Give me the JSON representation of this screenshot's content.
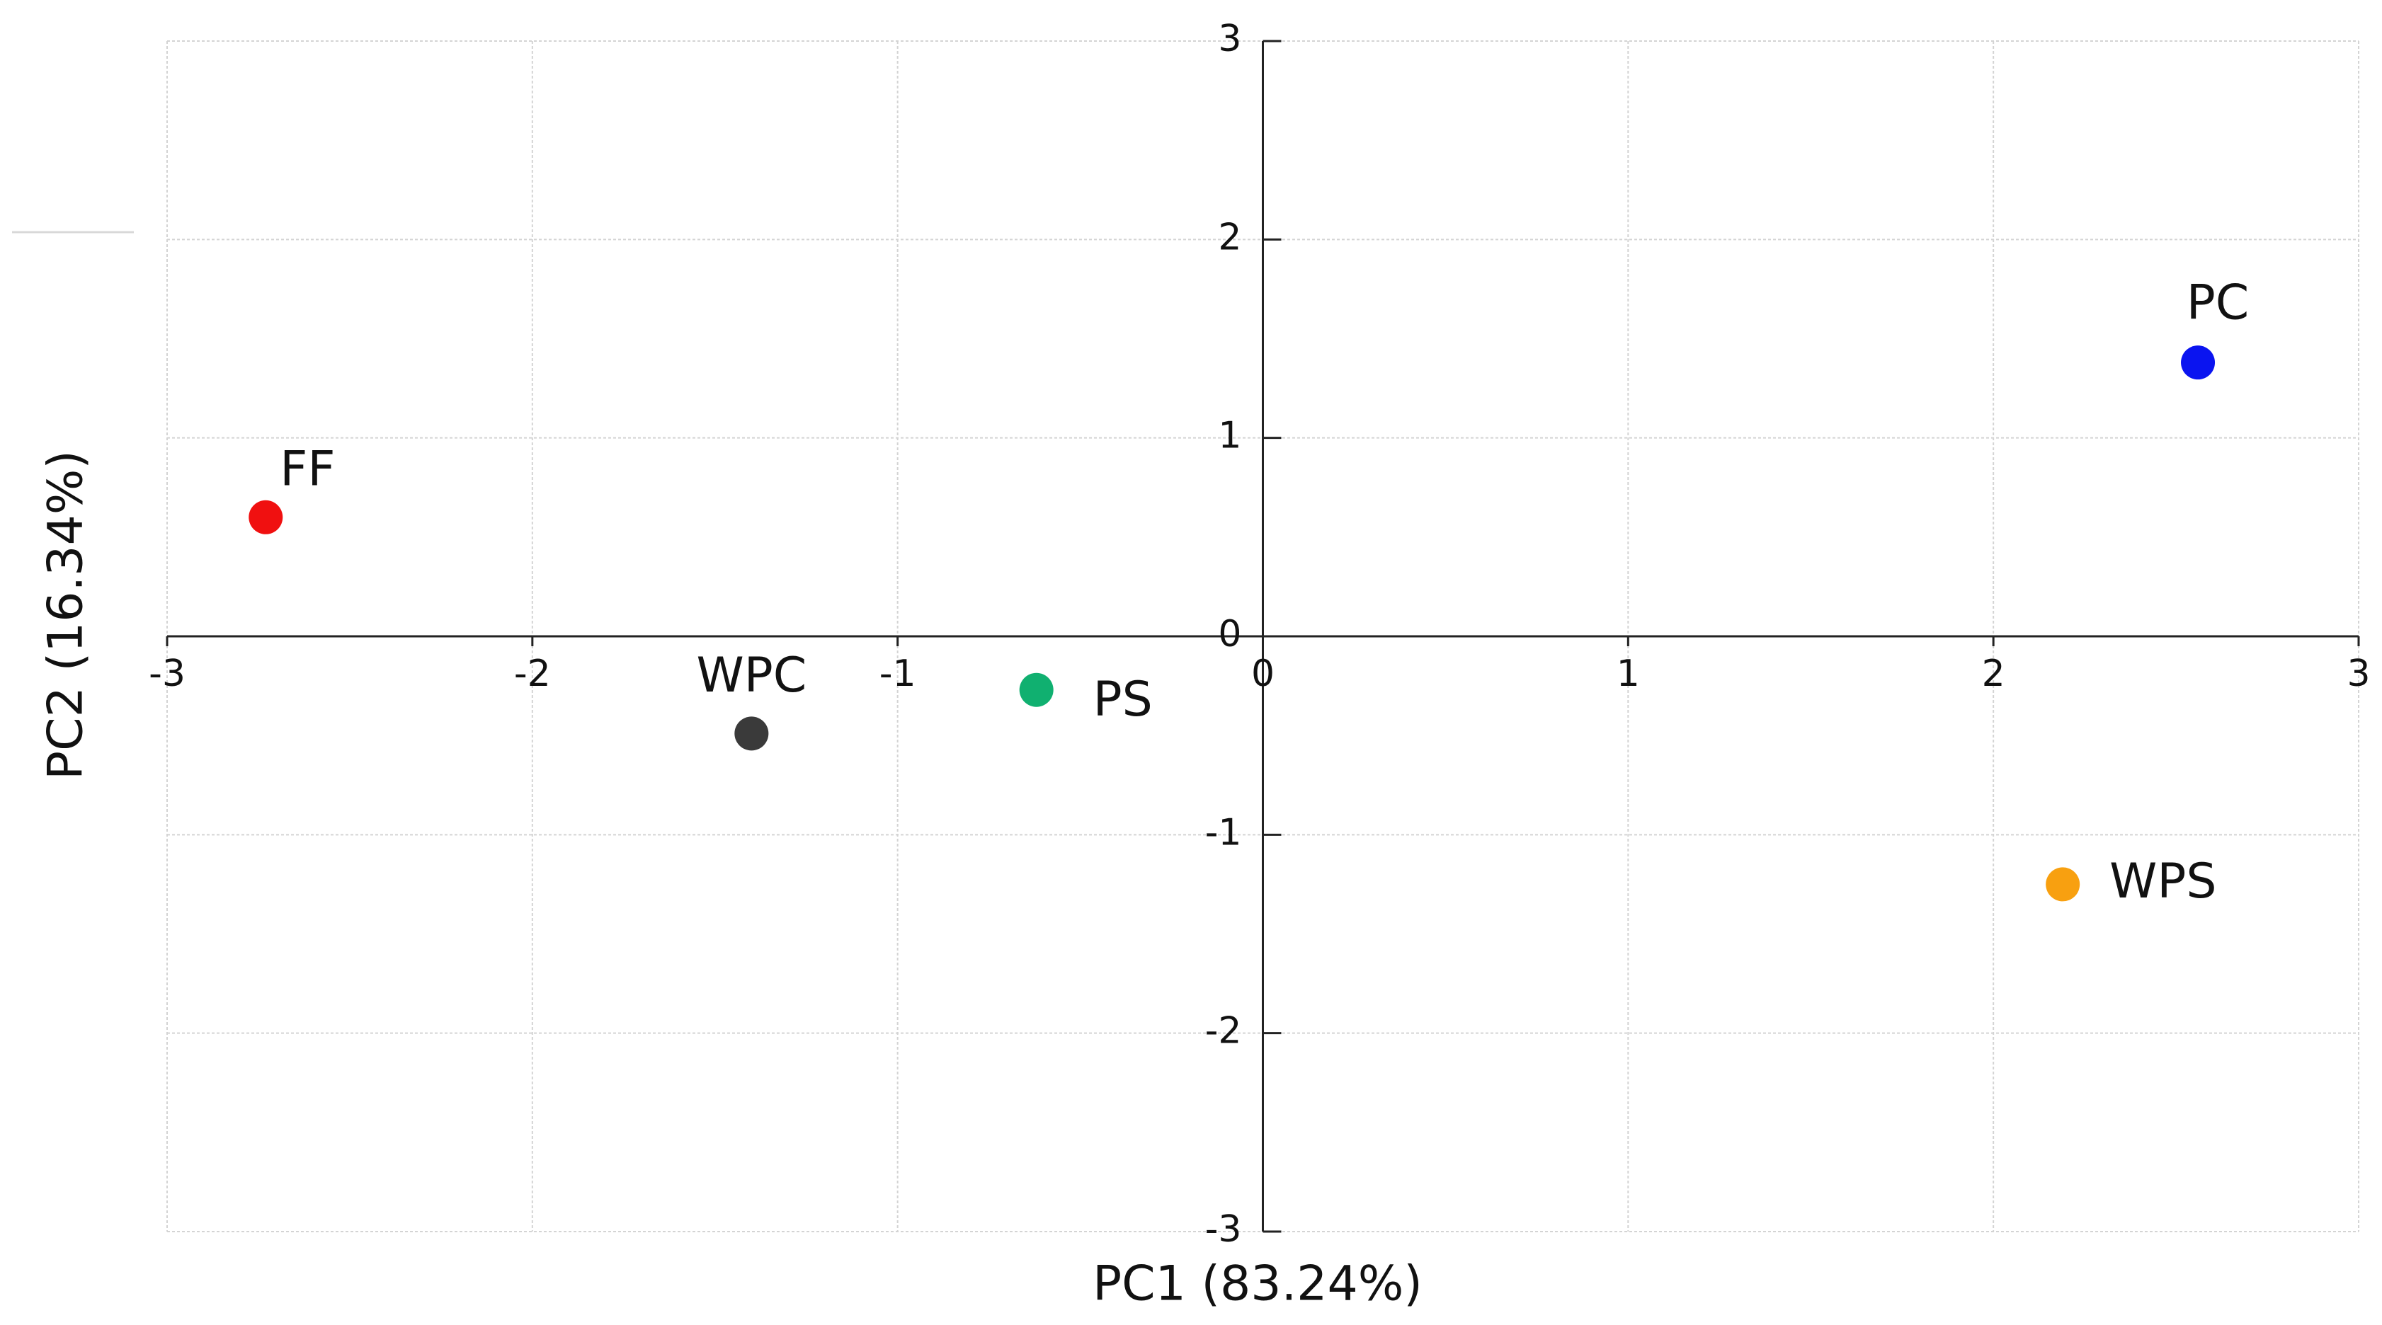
{
  "chart_data": {
    "type": "scatter",
    "x_label": "PC1 (83.24%)",
    "y_label": "PC2 (16.34%)",
    "xlim": [
      -3,
      3
    ],
    "ylim": [
      -3,
      3
    ],
    "xticks": [
      -3,
      -2,
      -1,
      0,
      1,
      2,
      3
    ],
    "yticks": [
      -3,
      -2,
      -1,
      0,
      1,
      2,
      3
    ],
    "grid": true,
    "series": [
      {
        "name": "FF",
        "color": "#f01010",
        "x": [
          -2.73
        ],
        "y": [
          0.6
        ]
      },
      {
        "name": "WPC",
        "color": "#3a3a3a",
        "x": [
          -1.4
        ],
        "y": [
          -0.49
        ]
      },
      {
        "name": "PS",
        "color": "#10b070",
        "x": [
          -0.62
        ],
        "y": [
          -0.27
        ]
      },
      {
        "name": "PC",
        "color": "#0a14f0",
        "x": [
          2.56
        ],
        "y": [
          1.38
        ]
      },
      {
        "name": "WPS",
        "color": "#f8a010",
        "x": [
          2.19
        ],
        "y": [
          -1.25
        ]
      }
    ]
  }
}
